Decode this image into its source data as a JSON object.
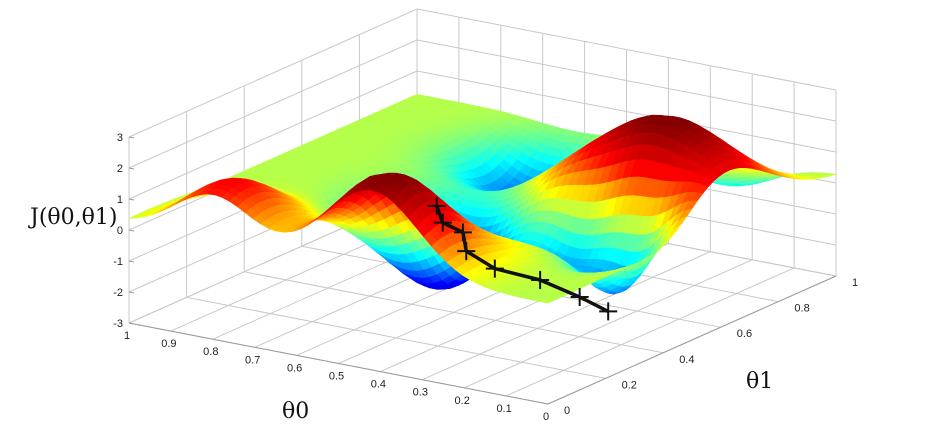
{
  "chart_data": {
    "type": "surface3d",
    "title": "",
    "zlabel": "J(θ0,θ1)",
    "xlabel": "θ0",
    "ylabel": "θ1",
    "zlim": [
      -3,
      3
    ],
    "z_ticks": [
      "3",
      "2",
      "1",
      "0",
      "-1",
      "-2",
      "-3"
    ],
    "theta0_ticks": [
      "1",
      "0.9",
      "0.8",
      "0.7",
      "0.6",
      "0.5",
      "0.4",
      "0.3",
      "0.2",
      "0.1",
      "0"
    ],
    "theta1_ticks": [
      "0",
      "0.2",
      "0.4",
      "0.6",
      "0.8",
      "1"
    ],
    "grid": true,
    "colormap": [
      "#00008f",
      "#0000ff",
      "#00ffff",
      "#ffff00",
      "#ff0000",
      "#800000"
    ],
    "descent_path": [
      {
        "theta0": 0.3,
        "theta1": 0.05,
        "z": 2.4
      },
      {
        "theta0": 0.32,
        "theta1": 0.1,
        "z": 1.6
      },
      {
        "theta0": 0.32,
        "theta1": 0.17,
        "z": 1.0
      },
      {
        "theta0": 0.36,
        "theta1": 0.24,
        "z": 0.0
      },
      {
        "theta0": 0.34,
        "theta1": 0.31,
        "z": -0.8
      },
      {
        "theta0": 0.28,
        "theta1": 0.38,
        "z": -1.3
      },
      {
        "theta0": 0.22,
        "theta1": 0.43,
        "z": -1.9
      },
      {
        "theta0": 0.2,
        "theta1": 0.5,
        "z": -2.6
      }
    ],
    "path_color": "#111111"
  }
}
